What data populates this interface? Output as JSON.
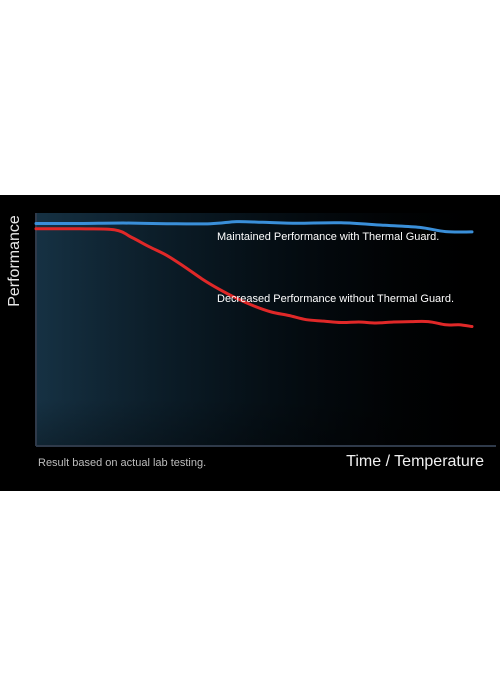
{
  "chart_data": {
    "type": "line",
    "title": "",
    "ylabel": "Performance",
    "xlabel": "Time / Temperature",
    "note": "Result based on actual lab testing.",
    "xlim": [
      0,
      100
    ],
    "ylim": [
      0,
      100
    ],
    "grid": false,
    "colors": {
      "background": "#000000",
      "axis": "#2a3140",
      "plot_glow": "#0f2838",
      "blue": "#3a8fd9",
      "red": "#e02828"
    },
    "series": [
      {
        "annotation": "Maintained Performance with Thermal Guard.",
        "color": "#3a8fd9",
        "x": [
          0,
          10,
          20,
          30,
          40,
          46,
          52,
          60,
          70,
          80,
          88,
          94,
          100
        ],
        "y": [
          95.5,
          95.5,
          95.7,
          95.4,
          95.4,
          96.3,
          96.0,
          95.6,
          95.8,
          94.7,
          93.8,
          92.0,
          91.9
        ]
      },
      {
        "annotation": "Decreased Performance without Thermal Guard.",
        "color": "#e02828",
        "x": [
          0,
          10,
          18,
          22,
          26,
          30,
          34,
          38,
          42,
          46,
          50,
          54,
          58,
          62,
          66,
          70,
          74,
          78,
          82,
          86,
          90,
          94,
          97,
          100
        ],
        "y": [
          93.2,
          93.2,
          92.8,
          89.5,
          85.5,
          81.8,
          77.0,
          71.8,
          67.3,
          63.4,
          60.1,
          57.5,
          56.0,
          54.2,
          53.6,
          53.0,
          53.2,
          52.8,
          53.2,
          53.4,
          53.4,
          52.0,
          52.0,
          51.3
        ]
      }
    ]
  }
}
